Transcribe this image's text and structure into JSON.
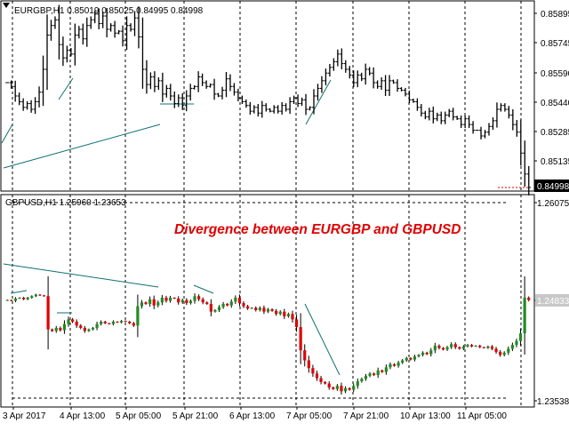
{
  "colors": {
    "background": "#ffffff",
    "axis": "#000000",
    "grid": "#000000",
    "bull": "#228b22",
    "bear": "#e00000",
    "wick": "#000000",
    "bar": "#000000",
    "trendline": "#0f7070",
    "annotation": "#e00000",
    "price_tag_bg": "#000000",
    "price_tag_text": "#ffffff",
    "price_tag2_bg": "#c8c8c8"
  },
  "top_panel": {
    "info": "EURGBP,H1  0.85019 0.85025 0.84995 0.84998",
    "price_labels": [
      "0.85895",
      "0.85745",
      "0.85590",
      "0.85440",
      "0.85285",
      "0.85135"
    ],
    "current_price_tag": "0.84998"
  },
  "bottom_panel": {
    "info": "GBPUSD,H1 1.25960 1.23653",
    "price_labels": [
      "1.26075",
      "1.24833",
      "1.23538"
    ],
    "annotation": "Divergence between EURGBP and GBPUSD"
  },
  "time_labels": [
    "3 Apr 2017",
    "4 Apr 13:00",
    "5 Apr 05:00",
    "5 Apr 21:00",
    "6 Apr 13:00",
    "7 Apr 05:00",
    "7 Apr 21:00",
    "10 Apr 13:00",
    "11 Apr 05:00"
  ],
  "chart_data": [
    {
      "type": "ohlc",
      "symbol": "EURGBP",
      "timeframe": "H1",
      "ylim": [
        0.8499,
        0.8597
      ],
      "series": [
        {
          "name": "EURGBP",
          "close": [
            0.8555,
            0.8553,
            0.8548,
            0.8545,
            0.8542,
            0.8544,
            0.8541,
            0.8545,
            0.855,
            0.8562,
            0.858,
            0.8585,
            0.8588,
            0.8575,
            0.8568,
            0.8572,
            0.857,
            0.858,
            0.8583,
            0.8578,
            0.8585,
            0.8588,
            0.8591,
            0.8586,
            0.859,
            0.8583,
            0.8585,
            0.8581,
            0.8582,
            0.8577,
            0.8585,
            0.8583,
            0.8589,
            0.8579,
            0.8562,
            0.8554,
            0.8558,
            0.8553,
            0.8556,
            0.8549,
            0.8552,
            0.8548,
            0.8544,
            0.8547,
            0.8543,
            0.8548,
            0.8552,
            0.8553,
            0.8558,
            0.8555,
            0.8553,
            0.8554,
            0.8549,
            0.8548,
            0.8551,
            0.8557,
            0.8553,
            0.855,
            0.8547,
            0.8545,
            0.8543,
            0.854,
            0.8542,
            0.8539,
            0.8543,
            0.8541,
            0.854,
            0.8542,
            0.854,
            0.8543,
            0.8541,
            0.8545,
            0.8547,
            0.8544,
            0.8546,
            0.8541,
            0.8542,
            0.8548,
            0.8552,
            0.8556,
            0.856,
            0.8563,
            0.8566,
            0.857,
            0.8565,
            0.8562,
            0.8559,
            0.8555,
            0.8559,
            0.8557,
            0.8562,
            0.856,
            0.8555,
            0.8553,
            0.8556,
            0.8551,
            0.8556,
            0.8555,
            0.8552,
            0.8551,
            0.8549,
            0.8546,
            0.8545,
            0.8542,
            0.8539,
            0.8537,
            0.854,
            0.8536,
            0.8538,
            0.8535,
            0.8538,
            0.854,
            0.8537,
            0.8536,
            0.8533,
            0.8536,
            0.8533,
            0.853,
            0.853,
            0.8527,
            0.8529,
            0.8532,
            0.8535,
            0.8541,
            0.8543,
            0.8541,
            0.8538,
            0.8533,
            0.8529,
            0.8518,
            0.8507,
            0.85
          ]
        }
      ]
    },
    {
      "type": "candlestick",
      "symbol": "GBPUSD",
      "timeframe": "H1",
      "ylim": [
        1.2347,
        1.2617
      ],
      "series": [
        {
          "name": "GBPUSD",
          "close": [
            1.2483,
            1.2482,
            1.2485,
            1.2486,
            1.2484,
            1.2486,
            1.2488,
            1.249,
            1.2489,
            1.2488,
            1.2445,
            1.2443,
            1.2447,
            1.2444,
            1.2452,
            1.2458,
            1.2455,
            1.245,
            1.2447,
            1.2443,
            1.2445,
            1.2447,
            1.2452,
            1.2455,
            1.2453,
            1.2452,
            1.2455,
            1.2454,
            1.2456,
            1.2455,
            1.2453,
            1.245,
            1.2475,
            1.248,
            1.2478,
            1.2484,
            1.2476,
            1.248,
            1.2486,
            1.2482,
            1.2486,
            1.2485,
            1.248,
            1.2483,
            1.2479,
            1.2482,
            1.2488,
            1.2484,
            1.248,
            1.2478,
            1.2468,
            1.247,
            1.2474,
            1.2478,
            1.2476,
            1.2481,
            1.2486,
            1.2479,
            1.2475,
            1.2472,
            1.2473,
            1.247,
            1.2473,
            1.2468,
            1.2471,
            1.2469,
            1.2465,
            1.2468,
            1.2462,
            1.2465,
            1.2458,
            1.2448,
            1.2418,
            1.2405,
            1.2395,
            1.2388,
            1.2382,
            1.2377,
            1.2375,
            1.237,
            1.2368,
            1.2372,
            1.2365,
            1.2369,
            1.2367,
            1.2372,
            1.2378,
            1.2381,
            1.2385,
            1.2388,
            1.2386,
            1.2392,
            1.239,
            1.2396,
            1.24,
            1.2398,
            1.2402,
            1.2405,
            1.2408,
            1.2406,
            1.241,
            1.2412,
            1.2415,
            1.2413,
            1.2418,
            1.2424,
            1.2421,
            1.2419,
            1.2422,
            1.2426,
            1.2422,
            1.242,
            1.2423,
            1.2425,
            1.2423,
            1.2424,
            1.2422,
            1.2421,
            1.2423,
            1.242,
            1.2416,
            1.2412,
            1.2415,
            1.242,
            1.2425,
            1.243,
            1.244,
            1.2486,
            1.2483
          ]
        }
      ]
    }
  ]
}
